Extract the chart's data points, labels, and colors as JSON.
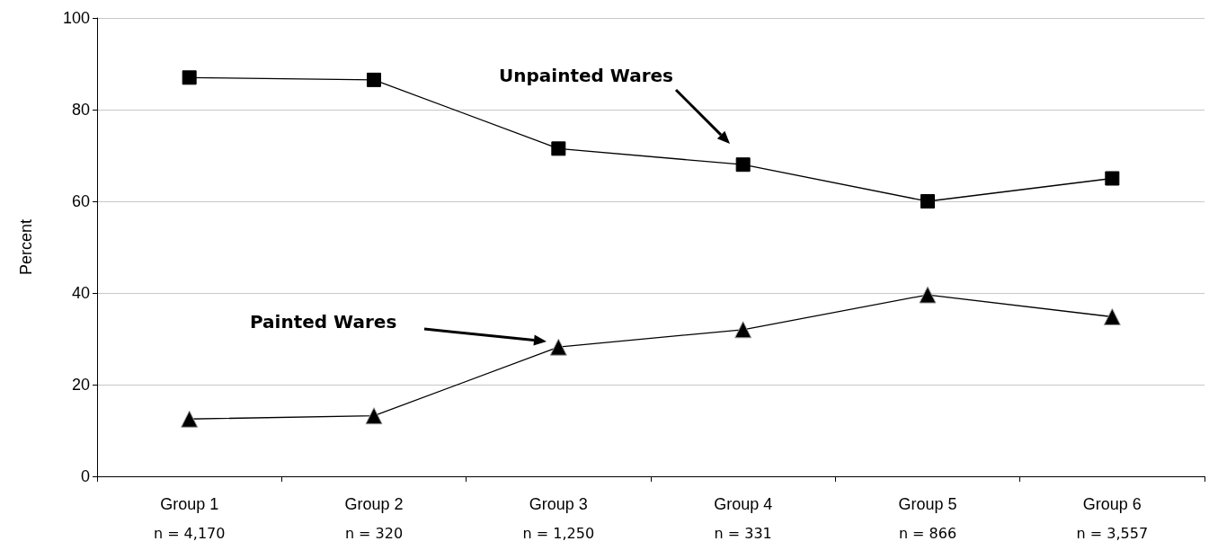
{
  "chart_data": {
    "type": "line",
    "ylabel": "Percent",
    "categories": [
      "Group 1\nn = 4,170",
      "Group 2\nn = 320",
      "Group 3\nn = 1,250",
      "Group 4\nn = 331",
      "Group 5\nn = 866",
      "Group 6\nn = 3,557"
    ],
    "series": [
      {
        "color": "#000000",
        "marker": "square",
        "values": [
          87,
          86.5,
          71.5,
          68,
          60,
          65
        ]
      },
      {
        "color": "#000000",
        "marker": "triangle",
        "values": [
          12.5,
          13.2,
          28.2,
          32,
          39.6,
          34.8
        ]
      }
    ],
    "ylim": [
      0,
      100
    ],
    "yticks": [
      0,
      20,
      40,
      60,
      80,
      100
    ],
    "grid": "y",
    "annotations": [
      "Unpainted Wares",
      "Painted Wares"
    ]
  }
}
